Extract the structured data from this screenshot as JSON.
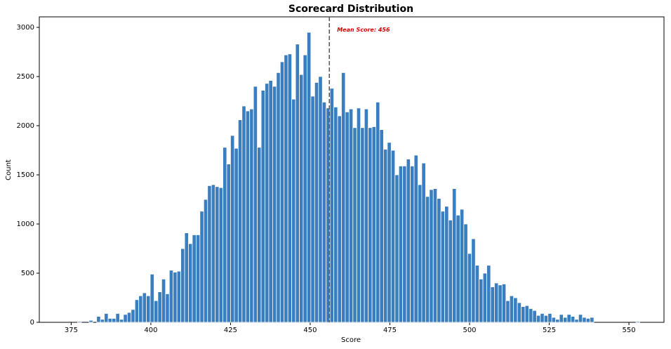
{
  "chart_data": {
    "type": "histogram",
    "title": "Scorecard Distribution",
    "x_label": "Score",
    "y_label": "Count",
    "color": "#3a7ebf",
    "bins": [
      377,
      378.2,
      379.4,
      380.6,
      381.8,
      383,
      384.2,
      385.4,
      386.6,
      387.8,
      389,
      390.2,
      391.4,
      392.6,
      393.8,
      395,
      396.2,
      397.4,
      398.6,
      399.8,
      401,
      402.2,
      403.4,
      404.6,
      405.8,
      407,
      408.2,
      409.4,
      410.6,
      411.8,
      413,
      414.2,
      415.4,
      416.6,
      417.8,
      419,
      420.2,
      421.4,
      422.6,
      423.8,
      425,
      426.2,
      427.4,
      428.6,
      429.8,
      431,
      432.2,
      433.4,
      434.6,
      435.8,
      437,
      438.2,
      439.4,
      440.6,
      441.8,
      443,
      444.2,
      445.4,
      446.6,
      447.8,
      449,
      450.2,
      451.4,
      452.6,
      453.8,
      455,
      456.2,
      457.4,
      458.6,
      459.8,
      461,
      462.2,
      463.4,
      464.6,
      465.8,
      467,
      468.2,
      469.4,
      470.6,
      471.8,
      473,
      474.2,
      475.4,
      476.6,
      477.8,
      479,
      480.2,
      481.4,
      482.6,
      483.8,
      485,
      486.2,
      487.4,
      488.6,
      489.8,
      491,
      492.2,
      493.4,
      494.6,
      495.8,
      497,
      498.2,
      499.4,
      500.6,
      501.8,
      503,
      504.2,
      505.4,
      506.6,
      507.8,
      509,
      510.2,
      511.4,
      512.6,
      513.8,
      515,
      516.2,
      517.4,
      518.6,
      519.8,
      521,
      522.2,
      523.4,
      524.6,
      525.8,
      527,
      528.2,
      529.4,
      530.6,
      531.8,
      533,
      534.2,
      535.4,
      536.6,
      537.8,
      539,
      540.2,
      541.4,
      542.6,
      543.8,
      545,
      546.2,
      547.4,
      548.6,
      549.8,
      551,
      552.2,
      553.4
    ],
    "values": [
      10,
      0,
      0,
      20,
      0,
      60,
      30,
      90,
      40,
      40,
      90,
      30,
      80,
      100,
      130,
      230,
      270,
      300,
      270,
      490,
      220,
      310,
      440,
      290,
      530,
      510,
      520,
      750,
      910,
      800,
      890,
      890,
      1130,
      1250,
      1390,
      1400,
      1380,
      1370,
      1780,
      1610,
      1900,
      1770,
      2060,
      2200,
      2150,
      2170,
      2400,
      1780,
      2360,
      2430,
      2460,
      2400,
      2540,
      2650,
      2720,
      2730,
      2270,
      2830,
      2520,
      2720,
      2950,
      2300,
      2440,
      2500,
      2240,
      2180,
      2380,
      2190,
      2100,
      2540,
      2140,
      2170,
      1980,
      2180,
      1980,
      2170,
      1980,
      1990,
      2240,
      1960,
      1760,
      1830,
      1750,
      1500,
      1590,
      1590,
      1660,
      1590,
      1700,
      1400,
      1620,
      1280,
      1350,
      1360,
      1260,
      1130,
      1180,
      1040,
      1360,
      1090,
      1150,
      1000,
      700,
      850,
      580,
      440,
      500,
      580,
      360,
      400,
      380,
      390,
      220,
      270,
      250,
      200,
      160,
      170,
      140,
      120,
      70,
      90,
      70,
      90,
      50,
      30,
      80,
      50,
      80,
      60,
      30,
      80,
      50,
      40,
      50,
      0,
      0,
      0,
      0,
      0,
      0,
      0,
      0,
      0,
      0,
      0,
      10
    ],
    "xlim": [
      365,
      561
    ],
    "xticks": [
      375,
      400,
      425,
      450,
      475,
      500,
      525,
      550
    ],
    "ylim": [
      0,
      3107
    ],
    "yticks": [
      0,
      500,
      1000,
      1500,
      2000,
      2500,
      3000
    ],
    "mean_line": 456,
    "mean_label": "Mean Score: 456"
  }
}
